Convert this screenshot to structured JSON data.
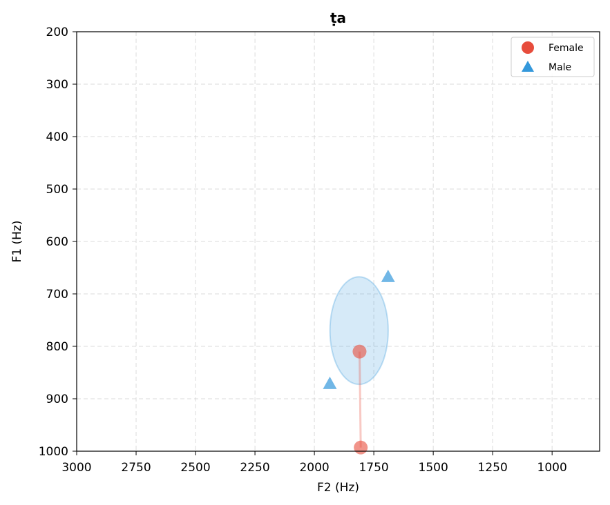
{
  "chart_data": {
    "type": "scatter",
    "title": "ṭa",
    "xlabel": "F2 (Hz)",
    "ylabel": "F1 (Hz)",
    "xlim": [
      3000,
      800
    ],
    "ylim": [
      1000,
      200
    ],
    "x_inverted": true,
    "y_inverted": true,
    "xticks": [
      3000,
      2750,
      2500,
      2250,
      2000,
      1750,
      1500,
      1250,
      1000
    ],
    "yticks": [
      200,
      300,
      400,
      500,
      600,
      700,
      800,
      900,
      1000
    ],
    "grid": true,
    "legend_position": "top-right",
    "series": [
      {
        "name": "Female",
        "marker": "circle",
        "color": "#e74c3c",
        "points": [
          {
            "x": 1810,
            "y": 810
          },
          {
            "x": 1805,
            "y": 993
          }
        ],
        "connector": true
      },
      {
        "name": "Male",
        "marker": "triangle",
        "color": "#3498db",
        "points": [
          {
            "x": 1690,
            "y": 668
          },
          {
            "x": 1935,
            "y": 872
          }
        ],
        "ellipse": {
          "center_x": 1812,
          "center_y": 770,
          "width_hz": 245,
          "height_hz": 205
        }
      }
    ]
  }
}
